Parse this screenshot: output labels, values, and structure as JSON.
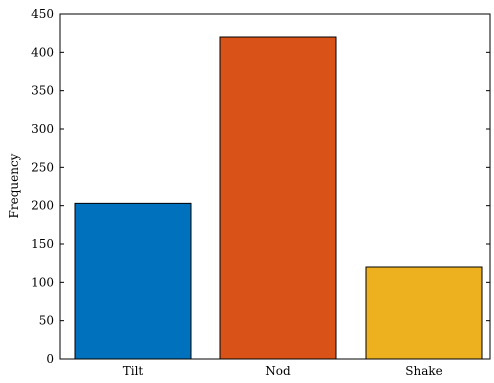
{
  "chart_data": {
    "type": "bar",
    "title": "",
    "xlabel": "",
    "ylabel": "Frequency",
    "categories": [
      "Tilt",
      "Nod",
      "Shake"
    ],
    "values": [
      203,
      420,
      120
    ],
    "colors": [
      "#0072bd",
      "#d95319",
      "#edb120"
    ],
    "ylim": [
      0,
      450
    ],
    "yticks": [
      0,
      50,
      100,
      150,
      200,
      250,
      300,
      350,
      400,
      450
    ],
    "grid": false,
    "legend": "none"
  }
}
